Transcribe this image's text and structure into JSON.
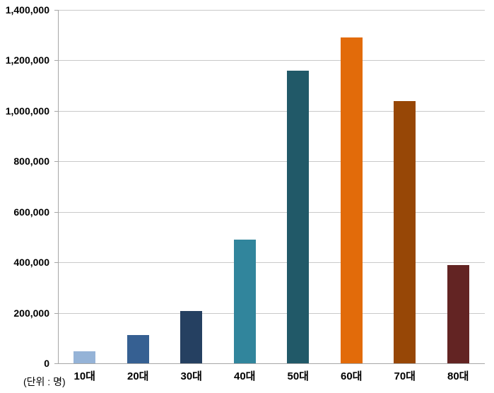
{
  "chart_data": {
    "type": "bar",
    "title": "",
    "categories": [
      "10대",
      "20대",
      "30대",
      "40대",
      "50대",
      "60대",
      "70대",
      "80대"
    ],
    "values": [
      48000,
      111000,
      206000,
      490000,
      1160000,
      1290000,
      1040000,
      390000
    ],
    "bar_colors": [
      "#95B3D7",
      "#366092",
      "#254061",
      "#31859C",
      "#215968",
      "#E26B0A",
      "#974706",
      "#632423"
    ],
    "xlabel": "",
    "ylabel": "",
    "ylim": [
      0,
      1400000
    ],
    "ytick_step": 200000,
    "ytick_labels": [
      "0",
      "200,000",
      "400,000",
      "600,000",
      "800,000",
      "1,000,000",
      "1,200,000",
      "1,400,000"
    ],
    "grid": true,
    "legend": "none",
    "unit_note": "(단위 : 명)"
  },
  "colors": {
    "background": "#ffffff",
    "gridline": "#c9c9c9",
    "axis": "#a6a6a6",
    "label_text": "#000000"
  }
}
